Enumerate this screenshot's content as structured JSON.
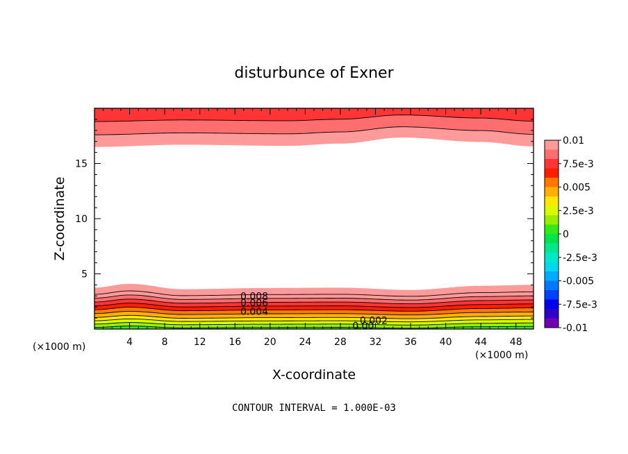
{
  "chart_data": {
    "type": "contour",
    "title": "disturbunce of Exner",
    "xlabel": "X-coordinate",
    "ylabel": "Z-coordinate",
    "x_unit": "(×1000 m)",
    "y_unit": "(×1000 m)",
    "xlim": [
      0,
      50
    ],
    "ylim": [
      0,
      20
    ],
    "x_ticks": [
      4,
      8,
      12,
      16,
      20,
      24,
      28,
      32,
      36,
      40,
      44,
      48
    ],
    "y_ticks": [
      5,
      10,
      15
    ],
    "contour_interval_text": "CONTOUR INTERVAL = 1.000E-03",
    "contour_labels": [
      {
        "text": "0.008",
        "x": 18.2,
        "z": 3.0
      },
      {
        "text": "0.006",
        "x": 18.2,
        "z": 2.4
      },
      {
        "text": "0.004",
        "x": 18.2,
        "z": 1.6
      },
      {
        "text": "0.002",
        "x": 31.8,
        "z": 0.8
      },
      {
        "text": "0.00",
        "x": 30.6,
        "z": 0.3
      }
    ],
    "colorbar": {
      "range": [
        -0.01,
        0.01
      ],
      "tick_labels": [
        "0.01",
        "7.5e-3",
        "0.005",
        "2.5e-3",
        "0",
        "-2.5e-3",
        "-0.005",
        "-7.5e-3",
        "-0.01"
      ],
      "levels": [
        {
          "value": 0.0095,
          "color": "#ff9a9a"
        },
        {
          "value": 0.0085,
          "color": "#ff6e6e"
        },
        {
          "value": 0.0075,
          "color": "#ff3434"
        },
        {
          "value": 0.0065,
          "color": "#ff1e00"
        },
        {
          "value": 0.0055,
          "color": "#ff7800"
        },
        {
          "value": 0.0045,
          "color": "#ffb000"
        },
        {
          "value": 0.0035,
          "color": "#ffe800"
        },
        {
          "value": 0.0025,
          "color": "#d8ff00"
        },
        {
          "value": 0.0015,
          "color": "#96f000"
        },
        {
          "value": 0.0005,
          "color": "#34e81a"
        },
        {
          "value": -0.0005,
          "color": "#00e44a"
        },
        {
          "value": -0.0015,
          "color": "#00e88e"
        },
        {
          "value": -0.0025,
          "color": "#00e8c8"
        },
        {
          "value": -0.0035,
          "color": "#00d8f0"
        },
        {
          "value": -0.0045,
          "color": "#00aaff"
        },
        {
          "value": -0.0055,
          "color": "#0078ff"
        },
        {
          "value": -0.0065,
          "color": "#0040ff"
        },
        {
          "value": -0.0075,
          "color": "#0000ee"
        },
        {
          "value": -0.0085,
          "color": "#3000c8"
        },
        {
          "value": -0.0095,
          "color": "#7000b0"
        }
      ]
    },
    "field_model": {
      "description_free": true,
      "bottom_bands_topography": [
        {
          "x": 0,
          "dz": 0
        },
        {
          "x": 4,
          "dz": 0.25
        },
        {
          "x": 10,
          "dz": -0.1
        },
        {
          "x": 20,
          "dz": -0.02
        },
        {
          "x": 28,
          "dz": 0.0
        },
        {
          "x": 36,
          "dz": -0.15
        },
        {
          "x": 44,
          "dz": 0.12
        },
        {
          "x": 50,
          "dz": 0.18
        }
      ],
      "top_bands_topography": [
        {
          "x": 0,
          "dz": 0
        },
        {
          "x": 10,
          "dz": 0.2
        },
        {
          "x": 22,
          "dz": 0.1
        },
        {
          "x": 28,
          "dz": 0.3
        },
        {
          "x": 35,
          "dz": 0.85
        },
        {
          "x": 44,
          "dz": 0.45
        },
        {
          "x": 50,
          "dz": 0.05
        }
      ],
      "bottom_levels_z": [
        0.15,
        0.45,
        0.75,
        1.05,
        1.4,
        1.75,
        2.1,
        2.45,
        2.8,
        3.15,
        3.45,
        3.75
      ],
      "bottom_level_values": [
        0.0005,
        0.0015,
        0.0025,
        0.0035,
        0.0045,
        0.0055,
        0.0065,
        0.0075,
        0.0085,
        0.0095,
        0.0095,
        0.0095
      ],
      "top_levels_z": [
        16.5,
        17.6,
        18.8
      ],
      "top_level_values": [
        0.0095,
        0.0085,
        0.0075
      ]
    }
  }
}
